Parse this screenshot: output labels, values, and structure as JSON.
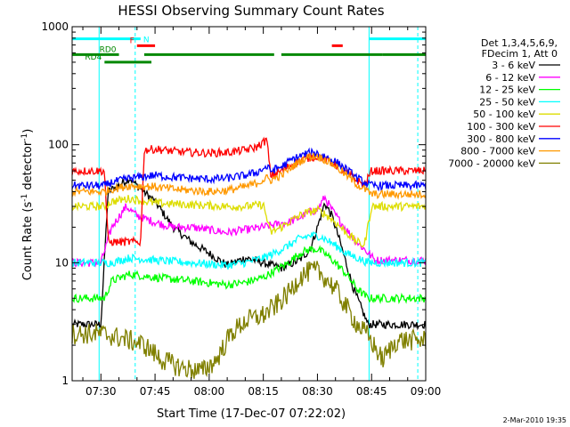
{
  "chart_data": {
    "type": "line",
    "title": "HESSI Observing Summary Count Rates",
    "xlabel": "Start Time (17-Dec-07 07:22:02)",
    "ylabel": "Count Rate (s",
    "ylabel_sup": "-1",
    "ylabel_mid": " detector",
    "ylabel_end": ")",
    "yscale": "log",
    "ylim": [
      1,
      1000
    ],
    "xlim_minutes": [
      22.03,
      120
    ],
    "x_ticks": [
      {
        "m": 30,
        "label": "07:30"
      },
      {
        "m": 45,
        "label": "07:45"
      },
      {
        "m": 60,
        "label": "08:00"
      },
      {
        "m": 75,
        "label": "08:15"
      },
      {
        "m": 90,
        "label": "08:30"
      },
      {
        "m": 105,
        "label": "08:45"
      },
      {
        "m": 120,
        "label": "09:00"
      }
    ],
    "y_ticks": [
      {
        "v": 1,
        "label": "1"
      },
      {
        "v": 10,
        "label": "10"
      },
      {
        "v": 100,
        "label": "100"
      },
      {
        "v": 1000,
        "label": "1000"
      }
    ],
    "legend_header": [
      "Det 1,3,4,5,6,9,",
      "FDecim 1, Att 0"
    ],
    "legend_placement": "right",
    "series": [
      {
        "name": "3 - 6 keV",
        "color": "#000000",
        "points": [
          [
            22,
            3
          ],
          [
            30,
            3
          ],
          [
            32,
            40
          ],
          [
            38,
            52
          ],
          [
            40,
            45
          ],
          [
            45,
            33
          ],
          [
            50,
            20
          ],
          [
            55,
            15
          ],
          [
            60,
            12
          ],
          [
            65,
            9.5
          ],
          [
            70,
            11
          ],
          [
            75,
            10
          ],
          [
            80,
            9
          ],
          [
            85,
            10.5
          ],
          [
            88,
            13
          ],
          [
            90,
            20
          ],
          [
            92,
            32
          ],
          [
            94,
            25
          ],
          [
            96,
            16
          ],
          [
            100,
            6
          ],
          [
            104,
            3
          ],
          [
            108,
            3
          ],
          [
            120,
            3
          ]
        ]
      },
      {
        "name": "6 - 12 keV",
        "color": "#ff00ff",
        "points": [
          [
            22,
            10
          ],
          [
            30,
            10
          ],
          [
            33,
            20
          ],
          [
            37,
            30
          ],
          [
            40,
            25
          ],
          [
            45,
            22
          ],
          [
            50,
            20
          ],
          [
            55,
            20
          ],
          [
            60,
            19
          ],
          [
            65,
            18
          ],
          [
            70,
            19
          ],
          [
            75,
            20
          ],
          [
            78,
            21
          ],
          [
            82,
            22
          ],
          [
            85,
            24
          ],
          [
            88,
            27
          ],
          [
            90,
            28
          ],
          [
            92,
            36
          ],
          [
            94,
            28
          ],
          [
            96,
            23
          ],
          [
            100,
            16
          ],
          [
            103,
            13
          ],
          [
            106,
            10.5
          ],
          [
            120,
            10.5
          ]
        ]
      },
      {
        "name": "12 - 25 keV",
        "color": "#00ff00",
        "points": [
          [
            22,
            5
          ],
          [
            31,
            5
          ],
          [
            33,
            7
          ],
          [
            38,
            8
          ],
          [
            45,
            7.5
          ],
          [
            55,
            7
          ],
          [
            65,
            6.5
          ],
          [
            70,
            6.8
          ],
          [
            75,
            7.5
          ],
          [
            78,
            8.5
          ],
          [
            82,
            10
          ],
          [
            85,
            12
          ],
          [
            88,
            13
          ],
          [
            90,
            13
          ],
          [
            92,
            12
          ],
          [
            95,
            10
          ],
          [
            98,
            8
          ],
          [
            101,
            6
          ],
          [
            104,
            5
          ],
          [
            120,
            5
          ]
        ]
      },
      {
        "name": "25 - 50 keV",
        "color": "#00ffff",
        "points": [
          [
            22,
            10
          ],
          [
            30,
            10
          ],
          [
            33,
            10
          ],
          [
            38,
            11
          ],
          [
            45,
            10.5
          ],
          [
            55,
            10
          ],
          [
            65,
            9.5
          ],
          [
            70,
            10
          ],
          [
            75,
            11
          ],
          [
            78,
            12
          ],
          [
            82,
            14
          ],
          [
            85,
            16
          ],
          [
            88,
            17
          ],
          [
            90,
            17
          ],
          [
            92,
            16
          ],
          [
            95,
            14
          ],
          [
            98,
            12
          ],
          [
            101,
            11
          ],
          [
            104,
            10
          ],
          [
            120,
            10
          ]
        ]
      },
      {
        "name": "50 - 100 keV",
        "color": "#dddd00",
        "points": [
          [
            22,
            30
          ],
          [
            31,
            30
          ],
          [
            33,
            33
          ],
          [
            38,
            35
          ],
          [
            45,
            32
          ],
          [
            55,
            31
          ],
          [
            65,
            30
          ],
          [
            70,
            30
          ],
          [
            75,
            31
          ],
          [
            77,
            18
          ],
          [
            80,
            20
          ],
          [
            83,
            23
          ],
          [
            86,
            26
          ],
          [
            88,
            27
          ],
          [
            90,
            28
          ],
          [
            92,
            26
          ],
          [
            95,
            22
          ],
          [
            98,
            18
          ],
          [
            101,
            15
          ],
          [
            103,
            14
          ],
          [
            105,
            30
          ],
          [
            120,
            30
          ]
        ]
      },
      {
        "name": "100 - 300 keV",
        "color": "#ff0000",
        "points": [
          [
            22,
            60
          ],
          [
            31,
            60
          ],
          [
            32,
            15
          ],
          [
            37,
            15
          ],
          [
            41,
            15
          ],
          [
            42,
            90
          ],
          [
            45,
            92
          ],
          [
            50,
            88
          ],
          [
            55,
            86
          ],
          [
            60,
            85
          ],
          [
            65,
            86
          ],
          [
            70,
            90
          ],
          [
            73,
            95
          ],
          [
            76,
            110
          ],
          [
            77,
            55
          ],
          [
            80,
            60
          ],
          [
            83,
            68
          ],
          [
            86,
            75
          ],
          [
            88,
            78
          ],
          [
            90,
            80
          ],
          [
            92,
            75
          ],
          [
            95,
            68
          ],
          [
            98,
            58
          ],
          [
            101,
            50
          ],
          [
            103,
            45
          ],
          [
            105,
            60
          ],
          [
            120,
            60
          ]
        ]
      },
      {
        "name": "300 - 800 keV",
        "color": "#0000ff",
        "points": [
          [
            22,
            45
          ],
          [
            31,
            45
          ],
          [
            33,
            48
          ],
          [
            38,
            52
          ],
          [
            45,
            55
          ],
          [
            50,
            53
          ],
          [
            55,
            52
          ],
          [
            60,
            51
          ],
          [
            65,
            52
          ],
          [
            70,
            55
          ],
          [
            73,
            58
          ],
          [
            76,
            65
          ],
          [
            77,
            60
          ],
          [
            80,
            65
          ],
          [
            83,
            75
          ],
          [
            86,
            82
          ],
          [
            88,
            85
          ],
          [
            90,
            85
          ],
          [
            92,
            80
          ],
          [
            95,
            72
          ],
          [
            98,
            62
          ],
          [
            101,
            52
          ],
          [
            103,
            48
          ],
          [
            105,
            45
          ],
          [
            120,
            45
          ]
        ]
      },
      {
        "name": "800 - 7000 keV",
        "color": "#ff9900",
        "points": [
          [
            22,
            40
          ],
          [
            31,
            40
          ],
          [
            33,
            42
          ],
          [
            38,
            45
          ],
          [
            45,
            44
          ],
          [
            50,
            42
          ],
          [
            55,
            41
          ],
          [
            60,
            40
          ],
          [
            65,
            41
          ],
          [
            70,
            44
          ],
          [
            73,
            47
          ],
          [
            76,
            52
          ],
          [
            77,
            50
          ],
          [
            80,
            55
          ],
          [
            83,
            65
          ],
          [
            86,
            75
          ],
          [
            88,
            80
          ],
          [
            90,
            80
          ],
          [
            92,
            75
          ],
          [
            95,
            66
          ],
          [
            98,
            55
          ],
          [
            101,
            46
          ],
          [
            103,
            42
          ],
          [
            105,
            38
          ],
          [
            120,
            38
          ]
        ]
      },
      {
        "name": "7000 - 20000 keV",
        "color": "#808000",
        "points": [
          [
            22,
            2.5
          ],
          [
            30,
            2.5
          ],
          [
            33,
            2.4
          ],
          [
            38,
            2.2
          ],
          [
            42,
            2.0
          ],
          [
            47,
            1.5
          ],
          [
            52,
            1.3
          ],
          [
            58,
            1.2
          ],
          [
            62,
            1.5
          ],
          [
            66,
            2.5
          ],
          [
            70,
            3.2
          ],
          [
            75,
            3.6
          ],
          [
            78,
            4.2
          ],
          [
            82,
            5.5
          ],
          [
            85,
            7.5
          ],
          [
            88,
            8.5
          ],
          [
            90,
            8.5
          ],
          [
            92,
            7.5
          ],
          [
            95,
            6
          ],
          [
            98,
            4.2
          ],
          [
            101,
            3
          ],
          [
            104,
            2.4
          ],
          [
            108,
            1.5
          ],
          [
            112,
            2.2
          ],
          [
            120,
            2.2
          ]
        ]
      }
    ],
    "flag_bars": [
      {
        "label": "",
        "color": "#00ffff",
        "y": 790,
        "segments": [
          [
            22.03,
            41
          ],
          [
            104.3,
            120
          ]
        ]
      },
      {
        "label": "N",
        "color": "#00ffff",
        "y": 790,
        "segments": []
      },
      {
        "label": "F",
        "color": "#ff0000",
        "y": 690,
        "segments": [
          [
            40,
            45
          ],
          [
            94,
            97
          ]
        ]
      },
      {
        "label": "RD0",
        "color": "#008800",
        "y": 580,
        "segments": [
          [
            22.03,
            35
          ],
          [
            42,
            78
          ],
          [
            80,
            108
          ],
          [
            108,
            120
          ]
        ]
      },
      {
        "label": "RD4",
        "color": "#008800",
        "y": 500,
        "segments": [
          [
            31,
            44
          ]
        ]
      }
    ],
    "vertical_markers": [
      {
        "m": 29.5,
        "style": "solid"
      },
      {
        "m": 39.5,
        "style": "dashed"
      },
      {
        "m": 104.3,
        "style": "solid"
      },
      {
        "m": 117.8,
        "style": "dashed"
      }
    ],
    "footer_date": "2-Mar-2010 19:35"
  }
}
